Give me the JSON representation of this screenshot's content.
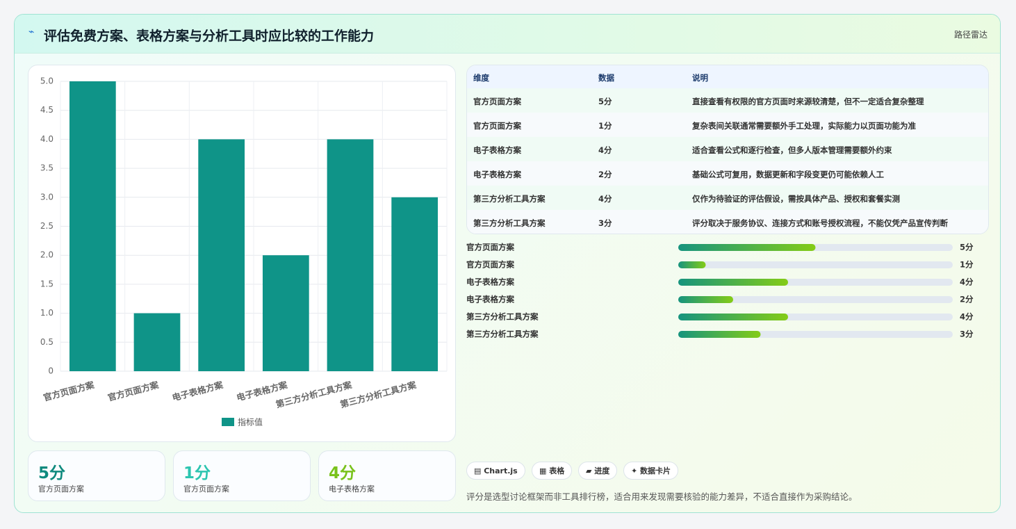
{
  "header": {
    "icon": "⌁",
    "title": "评估免费方案、表格方案与分析工具时应比较的工作能力",
    "badge": "路径雷达"
  },
  "chart_data": {
    "type": "bar",
    "categories": [
      "官方页面方案",
      "官方页面方案",
      "电子表格方案",
      "电子表格方案",
      "第三方分析工具方案",
      "第三方分析工具方案"
    ],
    "series": [
      {
        "name": "指标值",
        "color": "#0f9488",
        "values": [
          5,
          1,
          4,
          2,
          4,
          3
        ]
      }
    ],
    "ylim": [
      0,
      5
    ],
    "yticks": [
      0,
      0.5,
      {
        "value": 1,
        "label": "1.0"
      },
      1.5,
      {
        "value": 2,
        "label": "2.0"
      },
      2.5,
      {
        "value": 3,
        "label": "3.0"
      },
      3.5,
      {
        "value": 4,
        "label": "4.0"
      },
      4.5,
      {
        "value": 5,
        "label": "5.0"
      }
    ],
    "grid": true,
    "legend": "bottom"
  },
  "cards": [
    {
      "value": "5分",
      "label": "官方页面方案",
      "color": "#0f8a7e"
    },
    {
      "value": "1分",
      "label": "官方页面方案",
      "color": "#2cc5b0"
    },
    {
      "value": "4分",
      "label": "电子表格方案",
      "color": "#79c21c"
    }
  ],
  "table": {
    "columns": [
      "维度",
      "数据",
      "说明"
    ],
    "rows": [
      [
        "官方页面方案",
        "5分",
        "直接查看有权限的官方页面时来源较清楚，但不一定适合复杂整理"
      ],
      [
        "官方页面方案",
        "1分",
        "复杂表间关联通常需要额外手工处理，实际能力以页面功能为准"
      ],
      [
        "电子表格方案",
        "4分",
        "适合查看公式和逐行检查，但多人版本管理需要额外约束"
      ],
      [
        "电子表格方案",
        "2分",
        "基础公式可复用，数据更新和字段变更仍可能依赖人工"
      ],
      [
        "第三方分析工具方案",
        "4分",
        "仅作为待验证的评估假设，需按具体产品、授权和套餐实测"
      ],
      [
        "第三方分析工具方案",
        "3分",
        "评分取决于服务协议、连接方式和账号授权流程，不能仅凭产品宣传判断"
      ]
    ]
  },
  "progress": {
    "xlim": [
      0,
      10
    ],
    "labels": [
      "官方页面方案",
      "官方页面方案",
      "电子表格方案",
      "电子表格方案",
      "第三方分析工具方案",
      "第三方分析工具方案"
    ],
    "values": [
      5,
      1,
      4,
      2,
      4,
      3
    ],
    "value_labels": [
      "5分",
      "1分",
      "4分",
      "2分",
      "4分",
      "3分"
    ]
  },
  "tags": [
    "▤ Chart.js",
    "▦ 表格",
    "▰ 进度",
    "✦ 数据卡片"
  ],
  "footnote": "评分是选型讨论框架而非工具排行榜，适合用来发现需要核验的能力差异，不适合直接作为采购结论。"
}
